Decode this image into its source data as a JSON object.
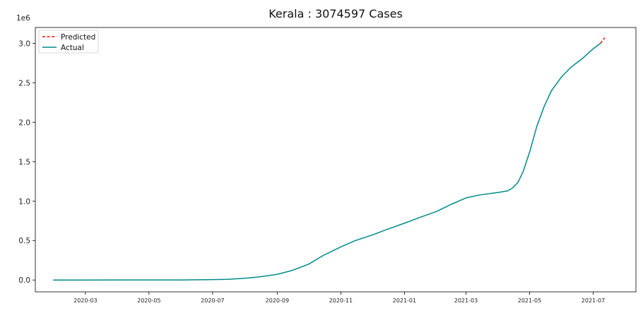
{
  "chart_data": {
    "type": "line",
    "title": "Kerala : 3074597 Cases",
    "xlabel": "",
    "ylabel": "",
    "y_offset_label": "1e6",
    "x_scale": "date",
    "xlim": [
      "2020-01-13",
      "2021-08-11"
    ],
    "ylim": [
      -0.15,
      3.2
    ],
    "x_ticks": [
      "2020-03",
      "2020-05",
      "2020-07",
      "2020-09",
      "2020-11",
      "2021-01",
      "2021-03",
      "2021-05",
      "2021-07"
    ],
    "y_ticks": [
      0.0,
      0.5,
      1.0,
      1.5,
      2.0,
      2.5,
      3.0
    ],
    "y_tick_labels": [
      "0.0",
      "0.5",
      "1.0",
      "1.5",
      "2.0",
      "2.5",
      "3.0"
    ],
    "grid": false,
    "legend_position": "top-left",
    "colors": {
      "actual": "#008b8b",
      "predicted": "#ff0000"
    },
    "series": [
      {
        "name": "Actual",
        "style": "solid",
        "x": [
          "2020-01-30",
          "2020-03-01",
          "2020-04-01",
          "2020-05-01",
          "2020-06-01",
          "2020-07-01",
          "2020-07-15",
          "2020-08-01",
          "2020-08-15",
          "2020-09-01",
          "2020-09-15",
          "2020-10-01",
          "2020-10-15",
          "2020-11-01",
          "2020-11-15",
          "2020-12-01",
          "2020-12-15",
          "2021-01-01",
          "2021-01-15",
          "2021-02-01",
          "2021-02-15",
          "2021-03-01",
          "2021-03-15",
          "2021-04-01",
          "2021-04-10",
          "2021-04-15",
          "2021-04-20",
          "2021-04-25",
          "2021-05-01",
          "2021-05-08",
          "2021-05-15",
          "2021-05-22",
          "2021-06-01",
          "2021-06-10",
          "2021-06-20",
          "2021-07-01",
          "2021-07-08"
        ],
        "values": [
          0.0,
          0.0,
          0.0003,
          0.0005,
          0.0012,
          0.005,
          0.009,
          0.022,
          0.04,
          0.072,
          0.12,
          0.2,
          0.31,
          0.42,
          0.5,
          0.57,
          0.64,
          0.72,
          0.79,
          0.87,
          0.96,
          1.04,
          1.08,
          1.11,
          1.13,
          1.17,
          1.24,
          1.38,
          1.62,
          1.95,
          2.2,
          2.4,
          2.58,
          2.7,
          2.8,
          2.93,
          3.0
        ]
      },
      {
        "name": "Predicted",
        "style": "dashed",
        "x": [
          "2021-07-08",
          "2021-07-12"
        ],
        "values": [
          3.0,
          3.07
        ]
      }
    ]
  }
}
